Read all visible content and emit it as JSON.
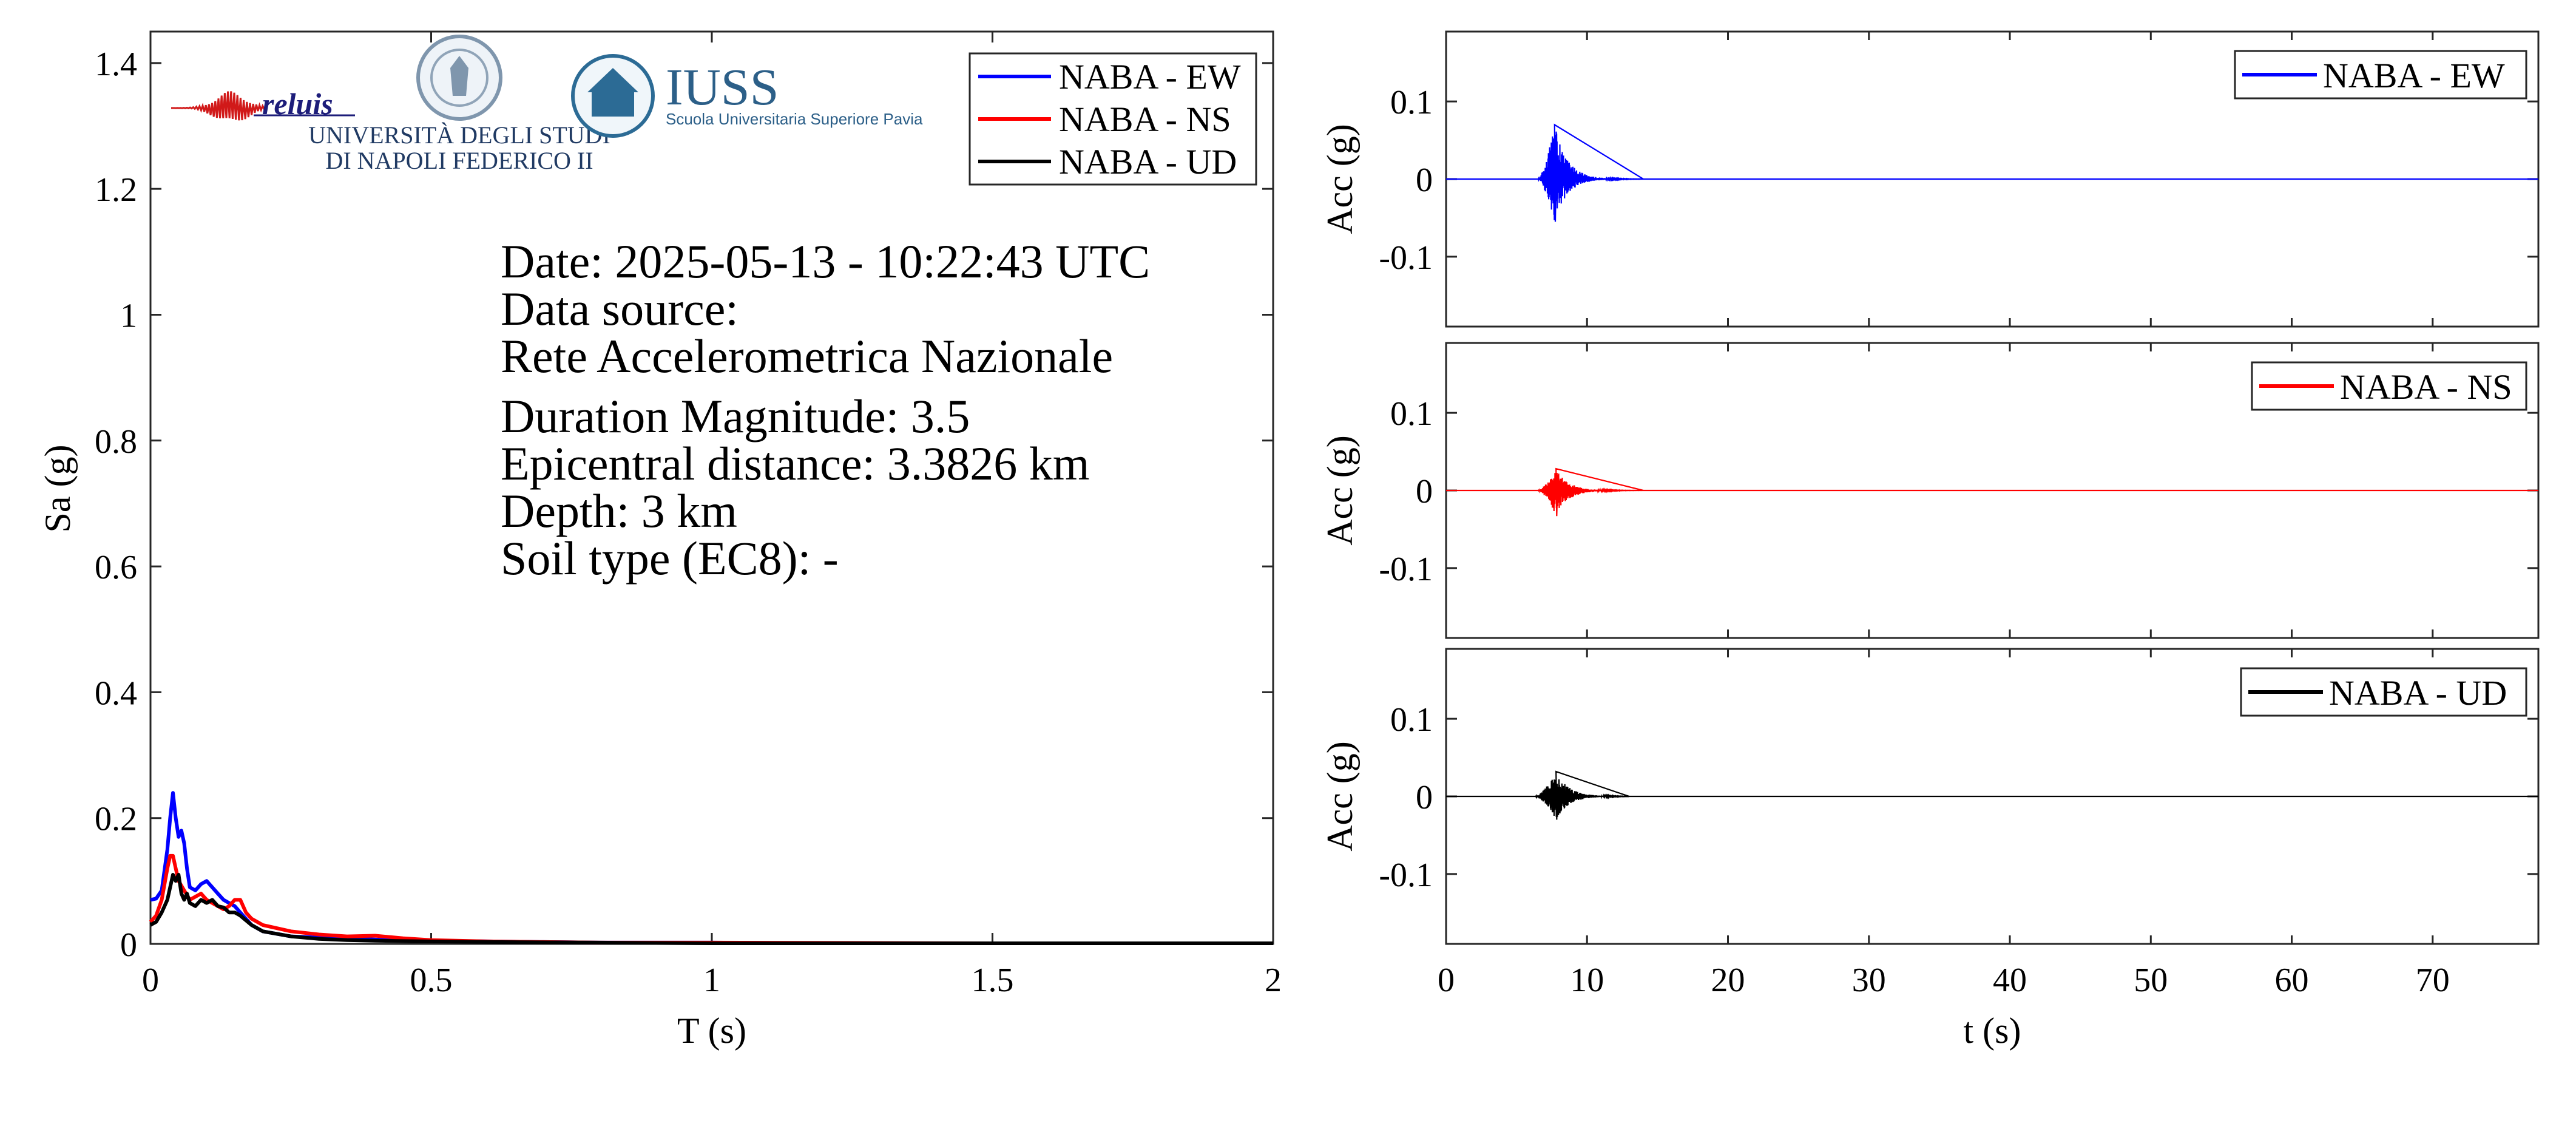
{
  "logos": {
    "reluis": "reluis",
    "unina_line1": "UNIVERSITÀ DEGLI STUDI",
    "unina_line2": "DI NAPOLI FEDERICO II",
    "iuss_title": "IUSS",
    "iuss_subtitle": "Scuola Universitaria Superiore Pavia"
  },
  "info": {
    "date": "Date: 2025-05-13 - 10:22:43 UTC",
    "source_label": "Data source:",
    "source_value": "Rete Accelerometrica Nazionale",
    "magnitude": "Duration Magnitude: 3.5",
    "distance": "Epicentral distance: 3.3826 km",
    "depth": "Depth: 3 km",
    "soil": "Soil type (EC8): -"
  },
  "colors": {
    "ew": "#0000ff",
    "ns": "#ff0000",
    "ud": "#000000"
  },
  "chart_data": [
    {
      "type": "line",
      "xlabel": "T (s)",
      "ylabel": "Sa (g)",
      "xlim": [
        0,
        2
      ],
      "ylim": [
        0,
        1.45
      ],
      "xticks": [
        "0",
        "0.5",
        "1",
        "1.5",
        "2"
      ],
      "yticks": [
        "0",
        "0.2",
        "0.4",
        "0.6",
        "0.8",
        "1",
        "1.2",
        "1.4"
      ],
      "legend_position": "top-right",
      "series": [
        {
          "name": "NABA - EW",
          "color": "#0000ff",
          "x": [
            0,
            0.01,
            0.02,
            0.03,
            0.035,
            0.04,
            0.045,
            0.05,
            0.055,
            0.06,
            0.065,
            0.07,
            0.08,
            0.09,
            0.1,
            0.11,
            0.12,
            0.13,
            0.14,
            0.15,
            0.16,
            0.18,
            0.2,
            0.25,
            0.3,
            0.35,
            0.4,
            0.45,
            0.5,
            0.6,
            0.7,
            0.8,
            1.0,
            1.2,
            1.5,
            2.0
          ],
          "values": [
            0.07,
            0.072,
            0.085,
            0.15,
            0.2,
            0.24,
            0.2,
            0.17,
            0.18,
            0.16,
            0.12,
            0.09,
            0.085,
            0.095,
            0.1,
            0.09,
            0.08,
            0.07,
            0.065,
            0.06,
            0.05,
            0.03,
            0.02,
            0.012,
            0.01,
            0.009,
            0.007,
            0.005,
            0.005,
            0.004,
            0.003,
            0.002,
            0.002,
            0.001,
            0.001,
            0.001
          ]
        },
        {
          "name": "NABA - NS",
          "color": "#ff0000",
          "x": [
            0,
            0.01,
            0.02,
            0.03,
            0.035,
            0.04,
            0.045,
            0.05,
            0.06,
            0.07,
            0.08,
            0.09,
            0.1,
            0.11,
            0.12,
            0.13,
            0.14,
            0.15,
            0.16,
            0.17,
            0.18,
            0.2,
            0.25,
            0.3,
            0.35,
            0.4,
            0.45,
            0.5,
            0.6,
            0.7,
            0.8,
            1.0,
            1.5,
            2.0
          ],
          "values": [
            0.035,
            0.045,
            0.07,
            0.12,
            0.14,
            0.14,
            0.12,
            0.1,
            0.085,
            0.07,
            0.075,
            0.08,
            0.07,
            0.065,
            0.06,
            0.055,
            0.06,
            0.07,
            0.07,
            0.05,
            0.04,
            0.03,
            0.02,
            0.015,
            0.012,
            0.013,
            0.009,
            0.006,
            0.004,
            0.003,
            0.002,
            0.002,
            0.001,
            0.001
          ]
        },
        {
          "name": "NABA - UD",
          "color": "#000000",
          "x": [
            0,
            0.01,
            0.02,
            0.03,
            0.035,
            0.04,
            0.045,
            0.05,
            0.055,
            0.06,
            0.065,
            0.07,
            0.08,
            0.09,
            0.1,
            0.11,
            0.12,
            0.13,
            0.14,
            0.15,
            0.16,
            0.18,
            0.2,
            0.25,
            0.3,
            0.35,
            0.4,
            0.5,
            0.6,
            0.8,
            1.0,
            1.5,
            2.0
          ],
          "values": [
            0.03,
            0.035,
            0.05,
            0.07,
            0.09,
            0.11,
            0.1,
            0.11,
            0.08,
            0.07,
            0.08,
            0.065,
            0.06,
            0.07,
            0.065,
            0.07,
            0.06,
            0.058,
            0.05,
            0.05,
            0.045,
            0.03,
            0.02,
            0.012,
            0.008,
            0.006,
            0.005,
            0.004,
            0.003,
            0.002,
            0.001,
            0.001,
            0.001
          ]
        }
      ]
    },
    {
      "type": "line",
      "xlabel": "",
      "ylabel": "Acc (g)",
      "xlim": [
        0,
        77.5
      ],
      "ylim": [
        -0.19,
        0.19
      ],
      "yticks": [
        "0.1",
        "0",
        "-0.1"
      ],
      "legend_position": "top-right",
      "series": [
        {
          "name": "NABA - EW",
          "color": "#0000ff",
          "event_start_s": 6.5,
          "event_end_s": 14,
          "peak_pos_g": 0.07,
          "peak_neg_g": -0.055,
          "peak_time_s": 7.7
        }
      ]
    },
    {
      "type": "line",
      "xlabel": "",
      "ylabel": "Acc (g)",
      "xlim": [
        0,
        77.5
      ],
      "ylim": [
        -0.19,
        0.19
      ],
      "yticks": [
        "0.1",
        "0",
        "-0.1"
      ],
      "legend_position": "top-right",
      "series": [
        {
          "name": "NABA - NS",
          "color": "#ff0000",
          "event_start_s": 6.5,
          "event_end_s": 14,
          "peak_pos_g": 0.028,
          "peak_neg_g": -0.033,
          "peak_time_s": 7.8
        }
      ]
    },
    {
      "type": "line",
      "xlabel": "t (s)",
      "ylabel": "Acc (g)",
      "xlim": [
        0,
        77.5
      ],
      "ylim": [
        -0.19,
        0.19
      ],
      "xticks": [
        "0",
        "10",
        "20",
        "30",
        "40",
        "50",
        "60",
        "70"
      ],
      "yticks": [
        "0.1",
        "0",
        "-0.1"
      ],
      "legend_position": "top-right",
      "series": [
        {
          "name": "NABA - UD",
          "color": "#000000",
          "event_start_s": 6.3,
          "event_end_s": 13,
          "peak_pos_g": 0.032,
          "peak_neg_g": -0.03,
          "peak_time_s": 7.8
        }
      ]
    }
  ]
}
